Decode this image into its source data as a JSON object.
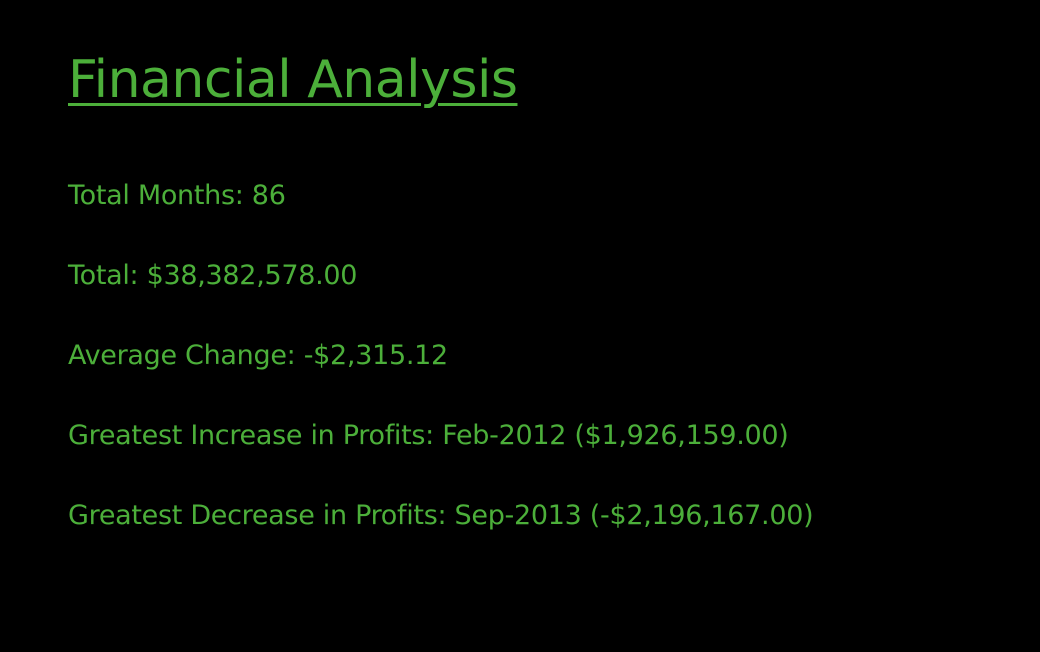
{
  "colors": {
    "background": "#000000",
    "text": "#4caf3a"
  },
  "report": {
    "title": "Financial Analysis",
    "lines": [
      "Total Months: 86",
      "Total: $38,382,578.00",
      "Average Change: -$2,315.12",
      "Greatest Increase in Profits: Feb-2012 ($1,926,159.00)",
      "Greatest Decrease in Profits: Sep-2013 (-$2,196,167.00)"
    ]
  }
}
